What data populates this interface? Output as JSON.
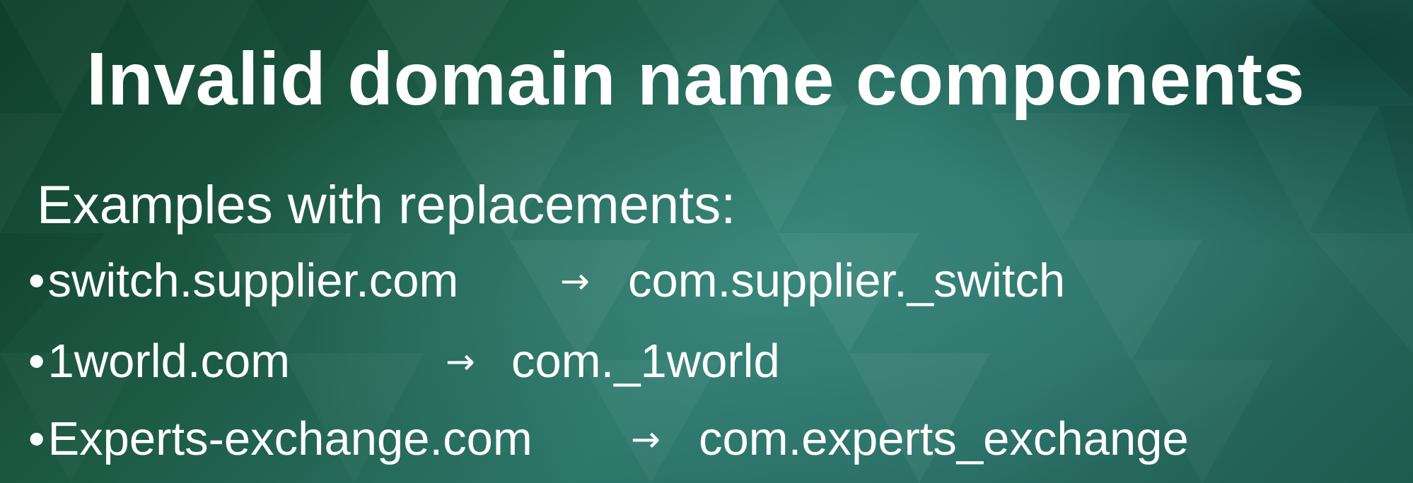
{
  "slide": {
    "title": "Invalid domain name components",
    "subtitle": "Examples with replacements:",
    "bullet_glyph": "•",
    "arrow_glyph": "→",
    "examples": [
      {
        "source": "switch.supplier.com",
        "replacement": "com.supplier._switch"
      },
      {
        "source": "1world.com",
        "replacement": "com._1world"
      },
      {
        "source": "Experts-exchange.com",
        "replacement": "com.experts_exchange"
      }
    ]
  },
  "theme": {
    "background_dark": "#0f3f2c",
    "background_mid": "#2c7569",
    "text_color": "#ffffff"
  }
}
